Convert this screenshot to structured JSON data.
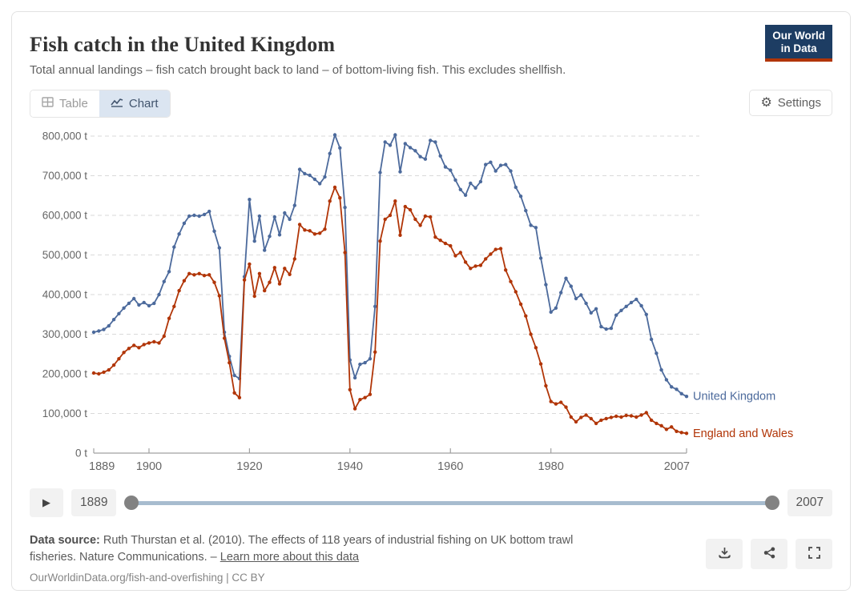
{
  "header": {
    "title": "Fish catch in the United Kingdom",
    "subtitle": "Total annual landings – fish catch brought back to land – of bottom-living fish. This excludes shellfish.",
    "logo_line1": "Our World",
    "logo_line2": "in Data"
  },
  "toolbar": {
    "table_label": "Table",
    "chart_label": "Chart",
    "settings_label": "Settings",
    "gear_icon": "⚙"
  },
  "timeline": {
    "play_icon": "▶",
    "start_year": "1889",
    "end_year": "2007"
  },
  "footer": {
    "source_prefix": "Data source:",
    "source_body": " Ruth Thurstan et al. (2010). The effects of 118 years of industrial fishing on UK bottom trawl fisheries. Nature Communications. – ",
    "link_label": "Learn more about this data",
    "citation": "OurWorldinData.org/fish-and-overfishing | CC BY"
  },
  "colors": {
    "uk_line": "#4C6A9C",
    "ew_line": "#B13507",
    "grid": "#dadada",
    "axis": "#a1a1a1",
    "tick_text": "#666666",
    "logo_bg": "#1d3d63",
    "logo_bar": "#b13507",
    "active_tab_bg": "#dbe5f1",
    "slider_track": "#a7bccf",
    "slider_handle": "#828282"
  },
  "chart_data": {
    "type": "line",
    "title": "Fish catch in the United Kingdom",
    "unit": "t",
    "grid": true,
    "legend_position": "end-of-line",
    "ylim": [
      0,
      800000
    ],
    "y_ticks": [
      0,
      100000,
      200000,
      300000,
      400000,
      500000,
      600000,
      700000,
      800000
    ],
    "x_ticks": [
      1889,
      1900,
      1920,
      1940,
      1960,
      1980,
      2007
    ],
    "x": [
      1889,
      1890,
      1891,
      1892,
      1893,
      1894,
      1895,
      1896,
      1897,
      1898,
      1899,
      1900,
      1901,
      1902,
      1903,
      1904,
      1905,
      1906,
      1907,
      1908,
      1909,
      1910,
      1911,
      1912,
      1913,
      1914,
      1915,
      1916,
      1917,
      1918,
      1919,
      1920,
      1921,
      1922,
      1923,
      1924,
      1925,
      1926,
      1927,
      1928,
      1929,
      1930,
      1931,
      1932,
      1933,
      1934,
      1935,
      1936,
      1937,
      1938,
      1939,
      1940,
      1941,
      1942,
      1943,
      1944,
      1945,
      1946,
      1947,
      1948,
      1949,
      1950,
      1951,
      1952,
      1953,
      1954,
      1955,
      1956,
      1957,
      1958,
      1959,
      1960,
      1961,
      1962,
      1963,
      1964,
      1965,
      1966,
      1967,
      1968,
      1969,
      1970,
      1971,
      1972,
      1973,
      1974,
      1975,
      1976,
      1977,
      1978,
      1979,
      1980,
      1981,
      1982,
      1983,
      1984,
      1985,
      1986,
      1987,
      1988,
      1989,
      1990,
      1991,
      1992,
      1993,
      1994,
      1995,
      1996,
      1997,
      1998,
      1999,
      2000,
      2001,
      2002,
      2003,
      2004,
      2005,
      2006,
      2007
    ],
    "series": [
      {
        "name": "United Kingdom",
        "color": "#4C6A9C",
        "values": [
          305000,
          308000,
          312000,
          321000,
          337000,
          352000,
          366000,
          378000,
          390000,
          374000,
          380000,
          372000,
          378000,
          400000,
          433000,
          458000,
          520000,
          553000,
          580000,
          598000,
          600000,
          598000,
          602000,
          610000,
          560000,
          518000,
          305000,
          244000,
          196000,
          188000,
          445000,
          640000,
          535000,
          598000,
          512000,
          547000,
          596000,
          551000,
          606000,
          590000,
          625000,
          716000,
          705000,
          701000,
          691000,
          680000,
          697000,
          756000,
          803000,
          770000,
          620000,
          235000,
          190000,
          224000,
          228000,
          238000,
          370000,
          708000,
          785000,
          777000,
          803000,
          710000,
          781000,
          771000,
          763000,
          748000,
          742000,
          789000,
          785000,
          750000,
          722000,
          714000,
          689000,
          665000,
          651000,
          681000,
          669000,
          685000,
          728000,
          734000,
          712000,
          726000,
          728000,
          712000,
          671000,
          648000,
          612000,
          575000,
          569000,
          492000,
          425000,
          356000,
          366000,
          405000,
          441000,
          421000,
          390000,
          399000,
          378000,
          354000,
          364000,
          319000,
          313000,
          315000,
          348000,
          360000,
          370000,
          380000,
          388000,
          372000,
          350000,
          287000,
          252000,
          210000,
          185000,
          167000,
          161000,
          150000,
          143000
        ]
      },
      {
        "name": "England and Wales",
        "color": "#B13507",
        "values": [
          202000,
          200000,
          204000,
          210000,
          222000,
          238000,
          254000,
          264000,
          272000,
          266000,
          274000,
          278000,
          281000,
          278000,
          295000,
          340000,
          370000,
          410000,
          435000,
          453000,
          450000,
          453000,
          448000,
          450000,
          431000,
          397000,
          290000,
          228000,
          152000,
          140000,
          437000,
          477000,
          396000,
          453000,
          410000,
          431000,
          468000,
          427000,
          466000,
          451000,
          490000,
          577000,
          563000,
          561000,
          553000,
          555000,
          565000,
          636000,
          671000,
          644000,
          506000,
          160000,
          112000,
          135000,
          140000,
          148000,
          255000,
          535000,
          590000,
          600000,
          636000,
          550000,
          622000,
          614000,
          590000,
          575000,
          598000,
          596000,
          545000,
          537000,
          529000,
          523000,
          498000,
          506000,
          482000,
          466000,
          472000,
          474000,
          490000,
          502000,
          514000,
          516000,
          462000,
          433000,
          407000,
          376000,
          346000,
          300000,
          266000,
          225000,
          170000,
          130000,
          124000,
          128000,
          116000,
          91000,
          79000,
          90000,
          96000,
          87000,
          75000,
          83000,
          87000,
          90000,
          93000,
          91000,
          95000,
          94000,
          91000,
          96000,
          102000,
          83000,
          75000,
          69000,
          60000,
          66000,
          55000,
          52000,
          50000
        ]
      }
    ]
  }
}
